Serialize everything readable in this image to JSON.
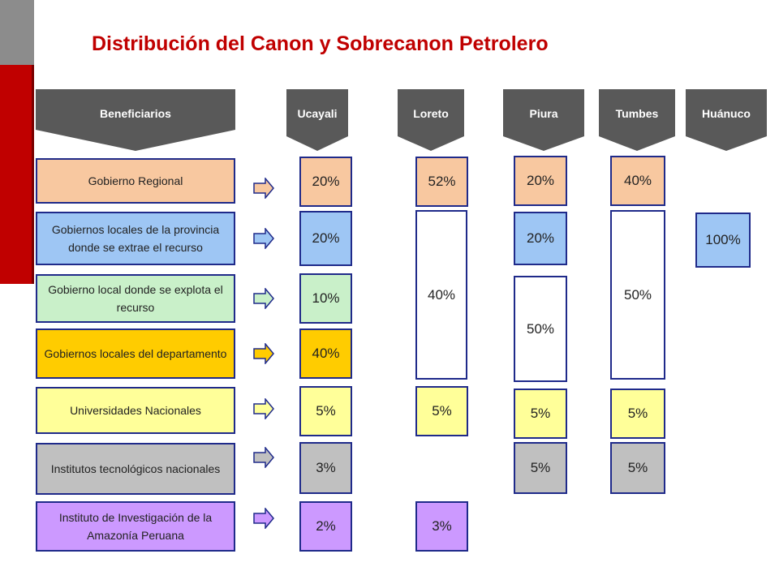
{
  "title": "Distribución del Canon y Sobrecanon Petrolero",
  "headers": {
    "beneficiarios": "Beneficiarios",
    "ucayali": "Ucayali",
    "loreto": "Loreto",
    "piura": "Piura",
    "tumbes": "Tumbes",
    "huanuco": "Huánuco"
  },
  "beneficiaries": [
    "Gobierno Regional",
    "Gobiernos locales de la provincia donde se extrae el recurso",
    "Gobierno local donde se explota el recurso",
    "Gobiernos locales del departamento",
    "Universidades Nacionales",
    "Institutos tecnológicos nacionales",
    "Instituto de Investigación de la Amazonía Peruana"
  ],
  "values": {
    "ucayali": [
      "20%",
      "20%",
      "10%",
      "40%",
      "5%",
      "3%",
      "2%"
    ],
    "loreto": {
      "gobierno_regional": "52%",
      "gobiernos_locales": "40%",
      "universidades": "5%",
      "iiap": "3%"
    },
    "piura": {
      "gobierno_regional": "20%",
      "provincia": "20%",
      "locales": "50%",
      "universidades": "5%",
      "institutos": "5%"
    },
    "tumbes": {
      "gobierno_regional": "40%",
      "gobiernos_locales": "50%",
      "universidades": "5%",
      "institutos": "5%"
    },
    "huanuco": {
      "provincia": "100%"
    }
  },
  "colors": {
    "title": "#c00000",
    "header": "#595959",
    "border": "#1f2a8a",
    "gobierno_regional": "#f8c8a0",
    "provincia": "#9ec6f4",
    "local": "#c9f0c9",
    "departamento": "#ffcc00",
    "universidades": "#ffff99",
    "institutos": "#c0c0c0",
    "iiap": "#cc99ff"
  },
  "icons": {
    "row_arrow": "right-arrow-icon",
    "header_shape": "chevron-down-banner"
  }
}
